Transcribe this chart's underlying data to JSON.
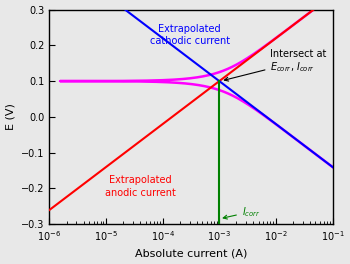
{
  "xlabel": "Absolute current (A)",
  "ylabel": "E (V)",
  "ylim": [
    -0.3,
    0.3
  ],
  "E_corr": 0.1,
  "I_corr": 0.001,
  "ba": 0.12,
  "bc": 0.12,
  "background_color": "#e8e8e8",
  "anodic_color": "red",
  "cathodic_color": "blue",
  "measured_color": "magenta",
  "icorr_line_color": "green",
  "label_anodic": "Extrapolated\nanodic current",
  "label_cathodic": "Extrapolated\ncathodic current"
}
